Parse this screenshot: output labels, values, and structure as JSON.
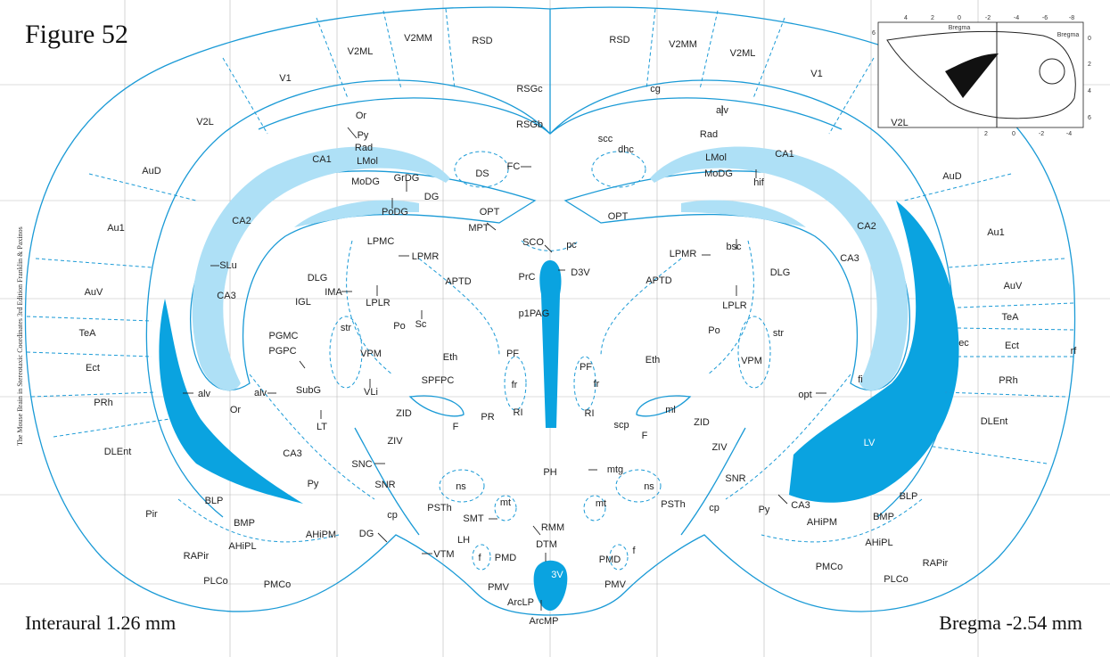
{
  "figure_title": "Figure 52",
  "interaural": "Interaural 1.26 mm",
  "bregma": "Bregma -2.54 mm",
  "side_credit": "The Mouse Brain in Stereotaxic Coordinates 3rd Edition  Franklin & Paxinos",
  "colors": {
    "outline": "#1a9ad6",
    "ventricle": "#0aa3e0",
    "whitematter": "#aee0f6"
  },
  "inset": {
    "label_top": "Bregma",
    "label_right": "Bregma",
    "top_ticks": [
      "4",
      "2",
      "0",
      "-2",
      "-4",
      "-6",
      "-8"
    ],
    "bottom_ticks": [
      "2",
      "0",
      "-2",
      "-4"
    ],
    "left_ticks": [
      "6"
    ],
    "right_ticks": [
      "0",
      "2",
      "4",
      "6"
    ]
  },
  "labels": {
    "V1": "V1",
    "V2L": "V2L",
    "V2ML": "V2ML",
    "V2MM": "V2MM",
    "RSD": "RSD",
    "RSGc": "RSGc",
    "RSGb": "RSGb",
    "AuD": "AuD",
    "Au1": "Au1",
    "AuV": "AuV",
    "TeA": "TeA",
    "Ect": "Ect",
    "PRh": "PRh",
    "DLEnt": "DLEnt",
    "Pir": "Pir",
    "BLP": "BLP",
    "BMP": "BMP",
    "AHiPL": "AHiPL",
    "AHiPM": "AHiPM",
    "RAPir": "RAPir",
    "PLCo": "PLCo",
    "PMCo": "PMCo",
    "CA1": "CA1",
    "CA2": "CA2",
    "CA3": "CA3",
    "Or": "Or",
    "Py": "Py",
    "Rad": "Rad",
    "LMol": "LMol",
    "MoDG": "MoDG",
    "GrDG": "GrDG",
    "PoDG": "PoDG",
    "DG": "DG",
    "DS": "DS",
    "FC": "FC",
    "OPT": "OPT",
    "MPT": "MPT",
    "SCO": "SCO",
    "pc": "pc",
    "D3V": "D3V",
    "PrC": "PrC",
    "p1PAG": "p1PAG",
    "APTD": "APTD",
    "LPMC": "LPMC",
    "LPMR": "LPMR",
    "LPLR": "LPLR",
    "DLG": "DLG",
    "IGL": "IGL",
    "IMA": "IMA",
    "SLu": "SLu",
    "Po": "Po",
    "Sc": "Sc",
    "str": "str",
    "PGMC": "PGMC",
    "PGPC": "PGPC",
    "VPM": "VPM",
    "Eth": "Eth",
    "PF": "PF",
    "fr": "fr",
    "SPFPC": "SPFPC",
    "VLi": "VLi",
    "SubG": "SubG",
    "alv": "alv",
    "LT": "LT",
    "ZID": "ZID",
    "ZIV": "ZIV",
    "F": "F",
    "PR": "PR",
    "RI": "RI",
    "SNC": "SNC",
    "SNR": "SNR",
    "ns": "ns",
    "PH": "PH",
    "mtg": "mtg",
    "PSTh": "PSTh",
    "SMT": "SMT",
    "mt": "mt",
    "RMM": "RMM",
    "LH": "LH",
    "DTM": "DTM",
    "PMD": "PMD",
    "PMV": "PMV",
    "VTM": "VTM",
    "f": "f",
    "3V": "3V",
    "ArcLP": "ArcLP",
    "ArcMP": "ArcMP",
    "cp": "cp",
    "cg": "cg",
    "scc": "scc",
    "dhc": "dhc",
    "hif": "hif",
    "bsc": "bsc",
    "opt": "opt",
    "fi": "fi",
    "LV": "LV",
    "ec": "ec",
    "rf": "rf",
    "ml": "ml",
    "scp": "scp"
  }
}
